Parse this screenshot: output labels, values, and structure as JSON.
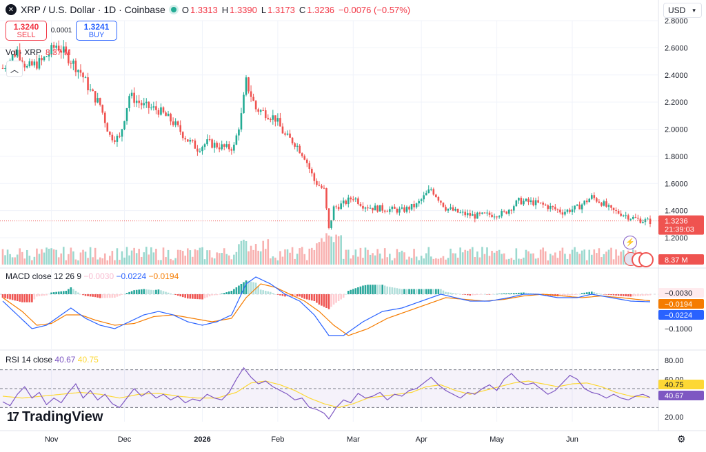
{
  "header": {
    "title": "XRP / U.S. Dollar · 1D · Coinbase",
    "open_label": "O",
    "open": "1.3313",
    "high_label": "H",
    "high": "1.3390",
    "low_label": "L",
    "low": "1.3173",
    "close_label": "C",
    "close": "1.3236",
    "change": "−0.0076 (−0.57%)",
    "logo_glyph": "✕"
  },
  "trade": {
    "sell_price": "1.3240",
    "sell_label": "SELL",
    "spread": "0.0001",
    "buy_price": "1.3241",
    "buy_label": "BUY"
  },
  "volume_legend": {
    "label": "Vol · XRP",
    "value": "8.37 M"
  },
  "macd_legend": {
    "label": "MACD close 12 26 9",
    "hist": "−0.0030",
    "macd": "−0.0224",
    "signal": "−0.0194"
  },
  "rsi_legend": {
    "label": "RSI 14 close",
    "rsi": "40.67",
    "ma": "40.75"
  },
  "currency": {
    "label": "USD",
    "icon": "chevron-down-icon"
  },
  "branding": {
    "name": "TradingView",
    "mark": "17"
  },
  "colors": {
    "up": "#22ab94",
    "down": "#ef5350",
    "macd": "#2962ff",
    "signal": "#f57c00",
    "rsi": "#7e57c2",
    "rsi_ma": "#fdd835"
  },
  "chart_data": [
    {
      "type": "candlestick",
      "title": "XRP / U.S. Dollar · 1D · Coinbase",
      "x_ticks": [
        "Nov",
        "Dec",
        "2026",
        "Feb",
        "Mar",
        "Apr",
        "May",
        "Jun"
      ],
      "y_ticks": [
        "2.8000",
        "2.6000",
        "2.4000",
        "2.2000",
        "2.0000",
        "1.8000",
        "1.6000",
        "1.4000",
        "1.2000"
      ],
      "ylim": [
        1.2,
        2.8
      ],
      "last_price": "1.3236",
      "countdown": "21:39:03",
      "price_path": [
        [
          0,
          2.45
        ],
        [
          6,
          2.58
        ],
        [
          10,
          2.45
        ],
        [
          16,
          2.5
        ],
        [
          22,
          2.62
        ],
        [
          26,
          2.55
        ],
        [
          32,
          2.42
        ],
        [
          36,
          2.28
        ],
        [
          40,
          2.18
        ],
        [
          44,
          1.95
        ],
        [
          48,
          1.93
        ],
        [
          52,
          2.25
        ],
        [
          58,
          2.17
        ],
        [
          64,
          2.14
        ],
        [
          70,
          2.05
        ],
        [
          76,
          1.92
        ],
        [
          80,
          1.86
        ],
        [
          84,
          1.9
        ],
        [
          88,
          1.88
        ],
        [
          92,
          1.86
        ],
        [
          95,
          1.87
        ],
        [
          98,
          2.1
        ],
        [
          100,
          2.35
        ],
        [
          104,
          2.15
        ],
        [
          108,
          2.12
        ],
        [
          112,
          2.08
        ],
        [
          116,
          1.95
        ],
        [
          120,
          1.9
        ],
        [
          124,
          1.8
        ],
        [
          128,
          1.62
        ],
        [
          132,
          1.55
        ],
        [
          134,
          1.26
        ],
        [
          136,
          1.42
        ],
        [
          140,
          1.45
        ],
        [
          144,
          1.5
        ],
        [
          148,
          1.44
        ],
        [
          152,
          1.42
        ],
        [
          158,
          1.41
        ],
        [
          164,
          1.4
        ],
        [
          170,
          1.44
        ],
        [
          176,
          1.56
        ],
        [
          182,
          1.42
        ],
        [
          188,
          1.38
        ],
        [
          194,
          1.36
        ],
        [
          200,
          1.37
        ],
        [
          206,
          1.38
        ],
        [
          212,
          1.47
        ],
        [
          218,
          1.46
        ],
        [
          224,
          1.43
        ],
        [
          230,
          1.39
        ],
        [
          236,
          1.42
        ],
        [
          242,
          1.5
        ],
        [
          246,
          1.46
        ],
        [
          250,
          1.4
        ],
        [
          254,
          1.38
        ],
        [
          258,
          1.35
        ],
        [
          262,
          1.33
        ],
        [
          266,
          1.32
        ]
      ]
    },
    {
      "type": "bar",
      "title": "Vol · XRP",
      "last_value": "8.37 M"
    },
    {
      "type": "line",
      "title": "MACD close 12 26 9",
      "y_ticks": [
        "−0.1000"
      ],
      "last_values": {
        "histogram": "−0.0030",
        "signal": "−0.0194",
        "macd": "−0.0224"
      },
      "ylim": [
        -0.13,
        0.07
      ],
      "macd_path": [
        [
          0,
          -0.02
        ],
        [
          6,
          -0.06
        ],
        [
          12,
          -0.1
        ],
        [
          18,
          -0.09
        ],
        [
          24,
          -0.06
        ],
        [
          28,
          -0.04
        ],
        [
          34,
          -0.07
        ],
        [
          40,
          -0.09
        ],
        [
          46,
          -0.1
        ],
        [
          52,
          -0.08
        ],
        [
          58,
          -0.06
        ],
        [
          64,
          -0.05
        ],
        [
          70,
          -0.06
        ],
        [
          76,
          -0.08
        ],
        [
          82,
          -0.09
        ],
        [
          88,
          -0.08
        ],
        [
          94,
          -0.06
        ],
        [
          100,
          0.03
        ],
        [
          104,
          0.05
        ],
        [
          110,
          0.03
        ],
        [
          116,
          0.0
        ],
        [
          122,
          -0.02
        ],
        [
          128,
          -0.06
        ],
        [
          134,
          -0.12
        ],
        [
          140,
          -0.12
        ],
        [
          148,
          -0.08
        ],
        [
          156,
          -0.05
        ],
        [
          164,
          -0.04
        ],
        [
          172,
          -0.02
        ],
        [
          180,
          0.0
        ],
        [
          186,
          -0.01
        ],
        [
          192,
          -0.02
        ],
        [
          200,
          -0.02
        ],
        [
          208,
          -0.01
        ],
        [
          214,
          0.0
        ],
        [
          220,
          0.0
        ],
        [
          228,
          -0.01
        ],
        [
          236,
          -0.01
        ],
        [
          242,
          0.0
        ],
        [
          250,
          -0.01
        ],
        [
          258,
          -0.02
        ],
        [
          266,
          -0.022
        ]
      ],
      "signal_path": [
        [
          0,
          -0.01
        ],
        [
          8,
          -0.05
        ],
        [
          14,
          -0.09
        ],
        [
          20,
          -0.085
        ],
        [
          26,
          -0.06
        ],
        [
          32,
          -0.06
        ],
        [
          38,
          -0.075
        ],
        [
          46,
          -0.09
        ],
        [
          54,
          -0.085
        ],
        [
          62,
          -0.065
        ],
        [
          70,
          -0.06
        ],
        [
          78,
          -0.07
        ],
        [
          86,
          -0.08
        ],
        [
          94,
          -0.07
        ],
        [
          100,
          -0.01
        ],
        [
          106,
          0.03
        ],
        [
          112,
          0.02
        ],
        [
          118,
          0.0
        ],
        [
          124,
          -0.02
        ],
        [
          130,
          -0.05
        ],
        [
          136,
          -0.09
        ],
        [
          142,
          -0.12
        ],
        [
          150,
          -0.1
        ],
        [
          158,
          -0.07
        ],
        [
          166,
          -0.05
        ],
        [
          174,
          -0.03
        ],
        [
          182,
          -0.01
        ],
        [
          190,
          -0.015
        ],
        [
          198,
          -0.02
        ],
        [
          206,
          -0.015
        ],
        [
          214,
          -0.005
        ],
        [
          222,
          0.0
        ],
        [
          230,
          -0.005
        ],
        [
          238,
          -0.01
        ],
        [
          246,
          -0.005
        ],
        [
          254,
          -0.01
        ],
        [
          266,
          -0.019
        ]
      ]
    },
    {
      "type": "line",
      "title": "RSI 14 close",
      "y_ticks": [
        "80.00",
        "60.00",
        "20.00"
      ],
      "ylim": [
        15,
        85
      ],
      "bands": [
        70,
        50,
        30
      ],
      "last_values": {
        "rsi": "40.67",
        "rsi_ma": "40.75"
      },
      "rsi_path": [
        [
          0,
          36
        ],
        [
          3,
          32
        ],
        [
          6,
          44
        ],
        [
          9,
          52
        ],
        [
          12,
          40
        ],
        [
          15,
          46
        ],
        [
          18,
          33
        ],
        [
          21,
          40
        ],
        [
          24,
          35
        ],
        [
          27,
          46
        ],
        [
          30,
          55
        ],
        [
          33,
          40
        ],
        [
          36,
          48
        ],
        [
          39,
          38
        ],
        [
          42,
          44
        ],
        [
          45,
          34
        ],
        [
          48,
          30
        ],
        [
          51,
          40
        ],
        [
          54,
          50
        ],
        [
          57,
          42
        ],
        [
          60,
          47
        ],
        [
          63,
          40
        ],
        [
          66,
          44
        ],
        [
          69,
          38
        ],
        [
          72,
          42
        ],
        [
          75,
          35
        ],
        [
          78,
          39
        ],
        [
          81,
          37
        ],
        [
          84,
          44
        ],
        [
          87,
          40
        ],
        [
          90,
          38
        ],
        [
          93,
          46
        ],
        [
          96,
          60
        ],
        [
          99,
          72
        ],
        [
          102,
          62
        ],
        [
          105,
          55
        ],
        [
          108,
          58
        ],
        [
          111,
          52
        ],
        [
          114,
          48
        ],
        [
          117,
          44
        ],
        [
          120,
          38
        ],
        [
          123,
          40
        ],
        [
          126,
          30
        ],
        [
          129,
          28
        ],
        [
          132,
          24
        ],
        [
          134,
          18
        ],
        [
          137,
          30
        ],
        [
          140,
          38
        ],
        [
          143,
          35
        ],
        [
          146,
          45
        ],
        [
          149,
          40
        ],
        [
          152,
          42
        ],
        [
          155,
          46
        ],
        [
          158,
          38
        ],
        [
          161,
          44
        ],
        [
          164,
          42
        ],
        [
          167,
          48
        ],
        [
          170,
          50
        ],
        [
          173,
          56
        ],
        [
          176,
          62
        ],
        [
          179,
          54
        ],
        [
          182,
          48
        ],
        [
          185,
          44
        ],
        [
          188,
          40
        ],
        [
          191,
          46
        ],
        [
          194,
          44
        ],
        [
          197,
          50
        ],
        [
          200,
          54
        ],
        [
          203,
          48
        ],
        [
          206,
          60
        ],
        [
          209,
          66
        ],
        [
          212,
          58
        ],
        [
          215,
          54
        ],
        [
          218,
          56
        ],
        [
          221,
          50
        ],
        [
          224,
          44
        ],
        [
          227,
          48
        ],
        [
          230,
          56
        ],
        [
          233,
          64
        ],
        [
          236,
          60
        ],
        [
          239,
          50
        ],
        [
          242,
          46
        ],
        [
          245,
          44
        ],
        [
          248,
          40
        ],
        [
          251,
          44
        ],
        [
          254,
          40
        ],
        [
          257,
          38
        ],
        [
          260,
          42
        ],
        [
          263,
          44
        ],
        [
          266,
          40.67
        ]
      ],
      "rsi_ma_path": [
        [
          0,
          42
        ],
        [
          8,
          40
        ],
        [
          16,
          42
        ],
        [
          24,
          44
        ],
        [
          32,
          46
        ],
        [
          40,
          44
        ],
        [
          48,
          40
        ],
        [
          56,
          44
        ],
        [
          64,
          45
        ],
        [
          72,
          42
        ],
        [
          80,
          40
        ],
        [
          88,
          40
        ],
        [
          96,
          46
        ],
        [
          102,
          56
        ],
        [
          108,
          58
        ],
        [
          114,
          54
        ],
        [
          120,
          48
        ],
        [
          126,
          40
        ],
        [
          132,
          34
        ],
        [
          138,
          30
        ],
        [
          144,
          34
        ],
        [
          150,
          40
        ],
        [
          156,
          42
        ],
        [
          162,
          44
        ],
        [
          168,
          46
        ],
        [
          174,
          52
        ],
        [
          180,
          54
        ],
        [
          186,
          48
        ],
        [
          192,
          44
        ],
        [
          198,
          48
        ],
        [
          204,
          52
        ],
        [
          210,
          56
        ],
        [
          216,
          58
        ],
        [
          222,
          55
        ],
        [
          228,
          52
        ],
        [
          234,
          55
        ],
        [
          240,
          56
        ],
        [
          246,
          52
        ],
        [
          252,
          46
        ],
        [
          258,
          42
        ],
        [
          266,
          40.75
        ]
      ]
    }
  ]
}
